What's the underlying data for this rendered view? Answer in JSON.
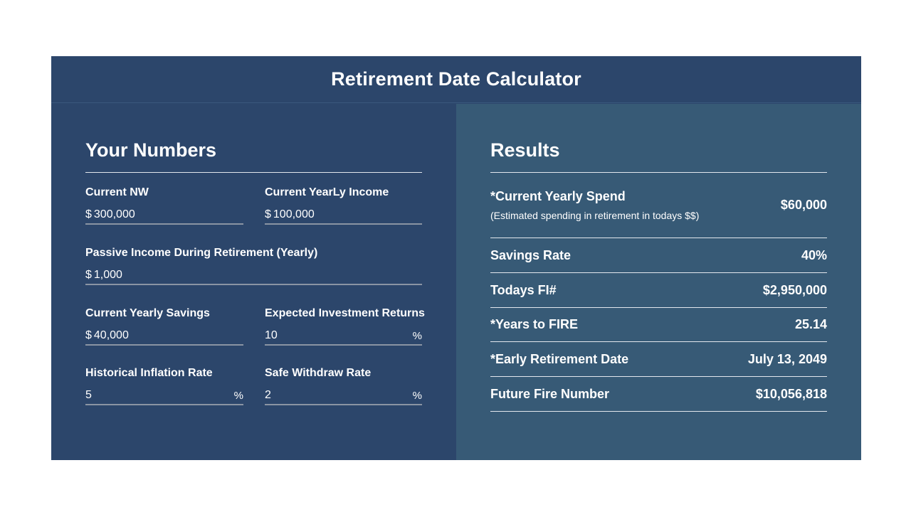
{
  "header": {
    "title": "Retirement Date Calculator"
  },
  "inputs": {
    "section_title": "Your Numbers",
    "currency_symbol": "$",
    "percent_symbol": "%",
    "current_nw": {
      "label": "Current NW",
      "value": "300,000"
    },
    "current_yearly_income": {
      "label": "Current YearLy Income",
      "value": "100,000"
    },
    "passive_income": {
      "label": "Passive Income During Retirement (Yearly)",
      "value": "1,000"
    },
    "current_yearly_savings": {
      "label": "Current Yearly Savings",
      "value": "40,000"
    },
    "expected_returns": {
      "label": "Expected Investment Returns",
      "value": "10"
    },
    "inflation_rate": {
      "label": "Historical Inflation Rate",
      "value": "5"
    },
    "withdraw_rate": {
      "label": "Safe Withdraw Rate",
      "value": "2"
    }
  },
  "results": {
    "section_title": "Results",
    "rows": [
      {
        "label": "*Current Yearly Spend",
        "note": "(Estimated spending in retirement in todays $$)",
        "value": "$60,000"
      },
      {
        "label": "Savings Rate",
        "value": "40%"
      },
      {
        "label": "Todays FI#",
        "value": "$2,950,000"
      },
      {
        "label": "*Years to FIRE",
        "value": "25.14"
      },
      {
        "label": "*Early Retirement Date",
        "value": "July 13, 2049"
      },
      {
        "label": "Future Fire Number",
        "value": "$10,056,818"
      }
    ]
  }
}
